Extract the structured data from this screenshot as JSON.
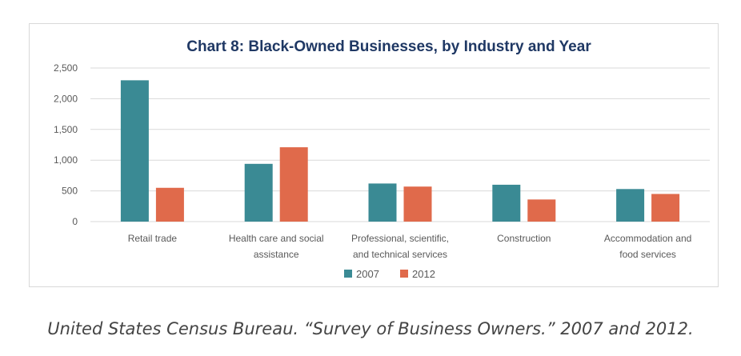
{
  "chart_data": {
    "type": "bar",
    "title": "Chart 8: Black-Owned Businesses, by Industry and Year",
    "categories": [
      [
        "Retail trade"
      ],
      [
        "Health care and social",
        "assistance"
      ],
      [
        "Professional, scientific,",
        "and technical services"
      ],
      [
        "Construction"
      ],
      [
        "Accommodation and",
        "food services"
      ]
    ],
    "series": [
      {
        "name": "2007",
        "color": "#3a8a94",
        "values": [
          2300,
          940,
          620,
          600,
          530
        ]
      },
      {
        "name": "2012",
        "color": "#e06a4b",
        "values": [
          550,
          1210,
          570,
          360,
          450
        ]
      }
    ],
    "ylim": [
      0,
      2500
    ],
    "yticks": [
      0,
      500,
      1000,
      1500,
      2000,
      2500
    ],
    "ytick_labels": [
      "0",
      "500",
      "1,000",
      "1,500",
      "2,000",
      "2,500"
    ],
    "grid": true,
    "legend": "bottom-center"
  },
  "caption": "United States Census Bureau. “Survey of Business Owners.” 2007 and 2012."
}
